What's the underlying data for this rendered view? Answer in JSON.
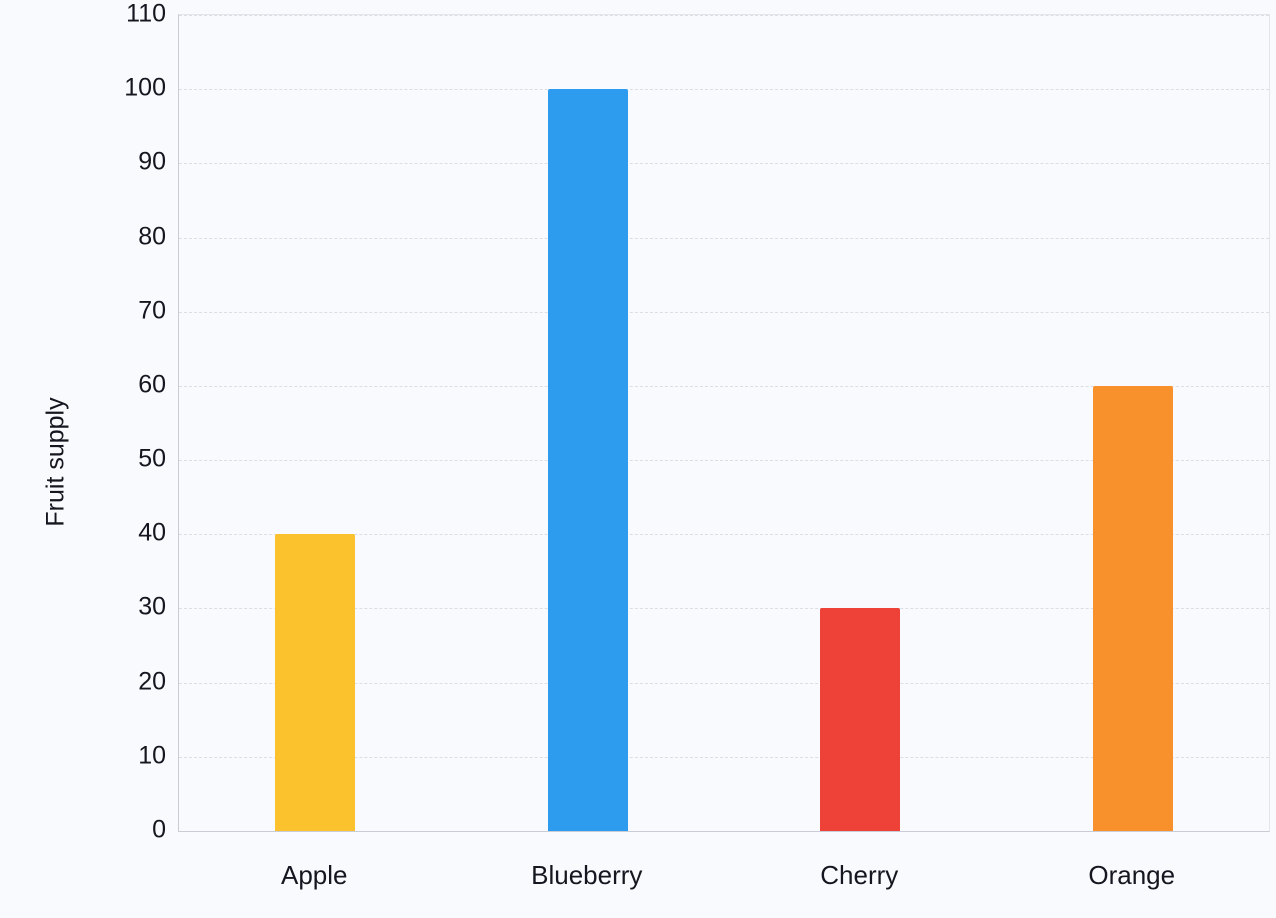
{
  "chart_data": {
    "type": "bar",
    "title": "",
    "xlabel": "",
    "ylabel": "Fruit supply",
    "categories": [
      "Apple",
      "Blueberry",
      "Cherry",
      "Orange"
    ],
    "values": [
      40,
      100,
      30,
      60
    ],
    "bar_colors": [
      "#fcc22d",
      "#2d9cef",
      "#ee4137",
      "#f8912b"
    ],
    "ylim": [
      0,
      110
    ],
    "yticks": [
      0,
      10,
      20,
      30,
      40,
      50,
      60,
      70,
      80,
      90,
      100,
      110
    ],
    "grid": "horizontal-dashed",
    "legend": "none",
    "background_color": "#f9fafe",
    "grid_color": "#dcdee5"
  }
}
